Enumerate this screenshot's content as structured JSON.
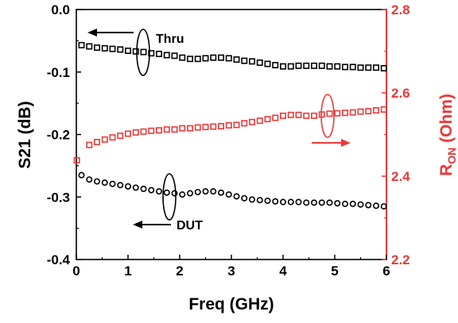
{
  "chart_data": {
    "type": "scatter",
    "xlabel": "Freq (GHz)",
    "ylabel_left": "S21 (dB)",
    "ylabel_right_main": "R",
    "ylabel_right_sub": "ON",
    "ylabel_right_unit": " (Ohm)",
    "xlim": [
      0,
      6
    ],
    "ylim_left": [
      -0.4,
      0.0
    ],
    "ylim_right": [
      2.2,
      2.8
    ],
    "x_ticks": [
      "0",
      "1",
      "2",
      "3",
      "4",
      "5",
      "6"
    ],
    "y_left_ticks": [
      "0.0",
      "-0.1",
      "-0.2",
      "-0.3",
      "-0.4"
    ],
    "y_right_ticks": [
      "2.8",
      "2.6",
      "2.4",
      "2.2"
    ],
    "colors": {
      "black": "#000000",
      "red": "#e83a3a"
    },
    "annotations": {
      "thru": "Thru",
      "dut": "DUT"
    },
    "series": [
      {
        "label": "Thru",
        "axis": "left",
        "marker": "square-open",
        "color": "#000000",
        "x": [
          0.1,
          0.25,
          0.4,
          0.55,
          0.7,
          0.85,
          1.0,
          1.15,
          1.3,
          1.45,
          1.6,
          1.75,
          1.9,
          2.05,
          2.2,
          2.35,
          2.5,
          2.65,
          2.8,
          2.95,
          3.1,
          3.25,
          3.4,
          3.55,
          3.7,
          3.85,
          4.0,
          4.15,
          4.3,
          4.45,
          4.6,
          4.75,
          4.9,
          5.05,
          5.2,
          5.35,
          5.5,
          5.65,
          5.8,
          5.95
        ],
        "y": [
          -0.057,
          -0.059,
          -0.061,
          -0.062,
          -0.063,
          -0.064,
          -0.066,
          -0.067,
          -0.068,
          -0.07,
          -0.071,
          -0.073,
          -0.074,
          -0.077,
          -0.079,
          -0.079,
          -0.078,
          -0.077,
          -0.077,
          -0.078,
          -0.08,
          -0.082,
          -0.083,
          -0.085,
          -0.087,
          -0.089,
          -0.091,
          -0.091,
          -0.09,
          -0.09,
          -0.09,
          -0.09,
          -0.091,
          -0.091,
          -0.092,
          -0.092,
          -0.093,
          -0.093,
          -0.093,
          -0.094
        ]
      },
      {
        "label": "DUT",
        "axis": "left",
        "marker": "circle-open",
        "color": "#000000",
        "x": [
          0.1,
          0.25,
          0.4,
          0.55,
          0.7,
          0.85,
          1.0,
          1.15,
          1.3,
          1.45,
          1.6,
          1.75,
          1.9,
          2.05,
          2.2,
          2.35,
          2.5,
          2.65,
          2.8,
          2.95,
          3.1,
          3.25,
          3.4,
          3.55,
          3.7,
          3.85,
          4.0,
          4.15,
          4.3,
          4.45,
          4.6,
          4.75,
          4.9,
          5.05,
          5.2,
          5.35,
          5.5,
          5.65,
          5.8,
          5.95
        ],
        "y": [
          -0.265,
          -0.272,
          -0.275,
          -0.277,
          -0.279,
          -0.281,
          -0.283,
          -0.285,
          -0.287,
          -0.289,
          -0.291,
          -0.293,
          -0.294,
          -0.296,
          -0.294,
          -0.292,
          -0.291,
          -0.291,
          -0.293,
          -0.296,
          -0.299,
          -0.302,
          -0.304,
          -0.305,
          -0.306,
          -0.307,
          -0.308,
          -0.308,
          -0.308,
          -0.309,
          -0.309,
          -0.309,
          -0.309,
          -0.31,
          -0.311,
          -0.311,
          -0.312,
          -0.313,
          -0.314,
          -0.315
        ]
      },
      {
        "label": "RON",
        "axis": "right",
        "marker": "square-open",
        "color": "#e83a3a",
        "x": [
          0.01,
          0.25,
          0.4,
          0.55,
          0.7,
          0.85,
          1.0,
          1.15,
          1.3,
          1.45,
          1.6,
          1.75,
          1.9,
          2.05,
          2.2,
          2.35,
          2.5,
          2.65,
          2.8,
          2.95,
          3.1,
          3.25,
          3.4,
          3.55,
          3.7,
          3.85,
          4.0,
          4.15,
          4.3,
          4.45,
          4.6,
          4.75,
          4.9,
          5.05,
          5.2,
          5.35,
          5.5,
          5.65,
          5.8,
          5.95
        ],
        "y": [
          2.438,
          2.475,
          2.482,
          2.488,
          2.493,
          2.497,
          2.502,
          2.505,
          2.507,
          2.509,
          2.51,
          2.512,
          2.512,
          2.515,
          2.515,
          2.517,
          2.518,
          2.519,
          2.52,
          2.522,
          2.523,
          2.527,
          2.53,
          2.533,
          2.537,
          2.54,
          2.545,
          2.547,
          2.547,
          2.545,
          2.545,
          2.548,
          2.55,
          2.551,
          2.552,
          2.553,
          2.555,
          2.556,
          2.558,
          2.56
        ]
      }
    ]
  }
}
